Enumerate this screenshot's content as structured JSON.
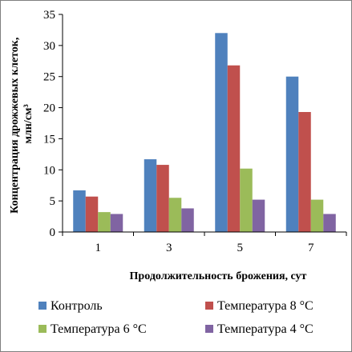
{
  "chart_data": {
    "type": "bar",
    "categories": [
      "1",
      "3",
      "5",
      "7"
    ],
    "series": [
      {
        "name": "Контроль",
        "values": [
          6.7,
          11.7,
          32.0,
          25.0
        ],
        "color": "#4f81bd"
      },
      {
        "name": "Температура 8 °С",
        "values": [
          5.7,
          10.8,
          26.8,
          19.3
        ],
        "color": "#c0504d"
      },
      {
        "name": "Температура 6 °С",
        "values": [
          3.2,
          5.5,
          10.2,
          5.2
        ],
        "color": "#9bbb59"
      },
      {
        "name": "Температура 4 °С",
        "values": [
          2.9,
          3.8,
          5.2,
          2.9
        ],
        "color": "#8064a2"
      }
    ],
    "xlabel": "Продолжительность брожения, сут",
    "ylabel_line1": "Концентрация дрожжевых клеток,",
    "ylabel_line2": "млн/см³",
    "ylim": [
      0,
      35
    ],
    "yticks": [
      "0",
      "5",
      "10",
      "15",
      "20",
      "25",
      "30",
      "35"
    ],
    "grid": false,
    "legend_position": "bottom"
  }
}
